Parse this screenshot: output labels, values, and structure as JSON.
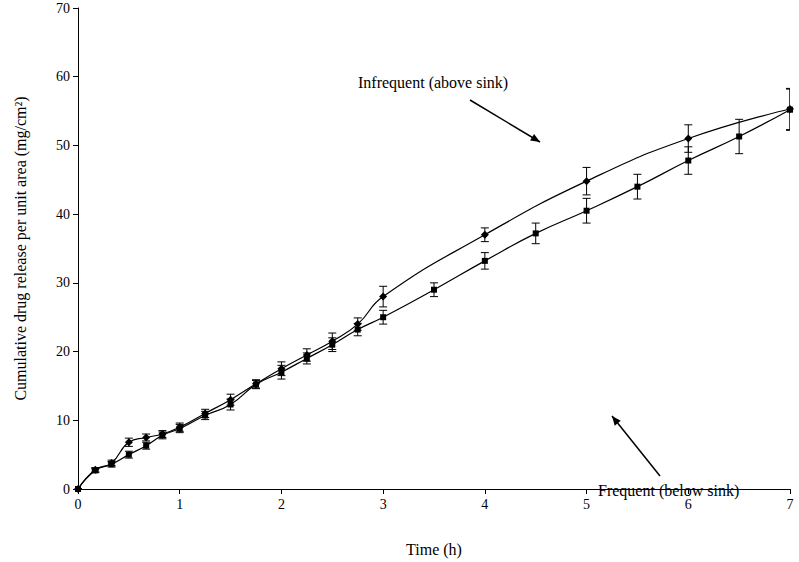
{
  "chart_data": {
    "type": "line",
    "xlabel": "Time (h)",
    "ylabel": "Cumulative drug release per unit area (mg/cm²)",
    "xlim": [
      0,
      7
    ],
    "xticks": [
      0,
      1,
      2,
      3,
      4,
      5,
      6,
      7
    ],
    "ylim": [
      0,
      70
    ],
    "yticks": [
      0,
      10,
      20,
      30,
      40,
      50,
      60,
      70
    ],
    "grid": false,
    "series": [
      {
        "name": "Infrequent (above sink)",
        "color": "#000000",
        "marker": "diamond",
        "line_style": "solid",
        "x": [
          0,
          0.17,
          0.33,
          0.5,
          0.67,
          0.83,
          1,
          1.25,
          1.5,
          1.75,
          2,
          2.25,
          2.5,
          2.75,
          3,
          4,
          5,
          6,
          7
        ],
        "values": [
          0,
          2.8,
          3.8,
          6.8,
          7.5,
          8,
          9,
          11,
          13,
          15.3,
          17.5,
          19.5,
          21.5,
          24,
          28,
          37,
          44.8,
          51,
          55.3
        ],
        "errors": [
          0,
          0.3,
          0.4,
          0.6,
          0.5,
          0.5,
          0.6,
          0.6,
          0.8,
          0.6,
          1,
          0.9,
          1.2,
          0.9,
          1.5,
          1,
          2,
          2,
          3
        ]
      },
      {
        "name": "Frequent (below sink)",
        "color": "#000000",
        "marker": "square",
        "line_style": "solid",
        "x": [
          0,
          0.17,
          0.33,
          0.5,
          0.67,
          0.83,
          1,
          1.25,
          1.5,
          1.75,
          2,
          2.25,
          2.5,
          2.75,
          3,
          3.5,
          4,
          4.5,
          5,
          5.5,
          6,
          6.5,
          7
        ],
        "values": [
          0,
          2.7,
          3.6,
          5,
          6.3,
          7.8,
          8.8,
          10.7,
          12.3,
          15.2,
          17,
          19,
          21,
          23.2,
          25,
          29,
          33.2,
          37.2,
          40.5,
          44,
          47.8,
          51.3,
          55.2
        ],
        "errors": [
          0,
          0.3,
          0.4,
          0.5,
          0.5,
          0.5,
          0.6,
          0.6,
          0.8,
          0.6,
          1,
          0.8,
          1,
          0.9,
          1,
          1,
          1.2,
          1.5,
          1.8,
          1.8,
          2,
          2.5,
          3
        ]
      }
    ]
  }
}
